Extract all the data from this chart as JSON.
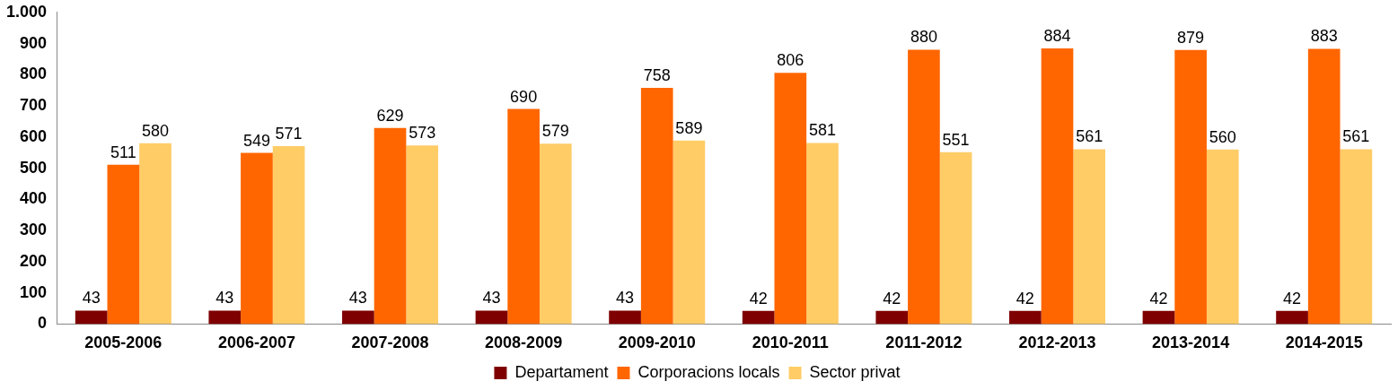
{
  "chart_data": {
    "type": "bar",
    "categories": [
      "2005-2006",
      "2006-2007",
      "2007-2008",
      "2008-2009",
      "2009-2010",
      "2010-2011",
      "2011-2012",
      "2012-2013",
      "2013-2014",
      "2014-2015"
    ],
    "series": [
      {
        "name": "Departament",
        "color": "#7f0000",
        "values": [
          43,
          43,
          43,
          43,
          43,
          42,
          42,
          42,
          42,
          42
        ]
      },
      {
        "name": "Corporacions locals",
        "color": "#ff6600",
        "values": [
          511,
          549,
          629,
          690,
          758,
          806,
          880,
          884,
          879,
          883
        ]
      },
      {
        "name": "Sector privat",
        "color": "#ffcc66",
        "values": [
          580,
          571,
          573,
          579,
          589,
          581,
          551,
          561,
          560,
          561
        ]
      }
    ],
    "ylim": [
      0,
      1000
    ],
    "yticks": [
      0,
      100,
      200,
      300,
      400,
      500,
      600,
      700,
      800,
      900,
      {
        "value": 1000,
        "label": "1.000"
      }
    ],
    "grid": false,
    "legend": "bottom",
    "data_labels": true
  }
}
